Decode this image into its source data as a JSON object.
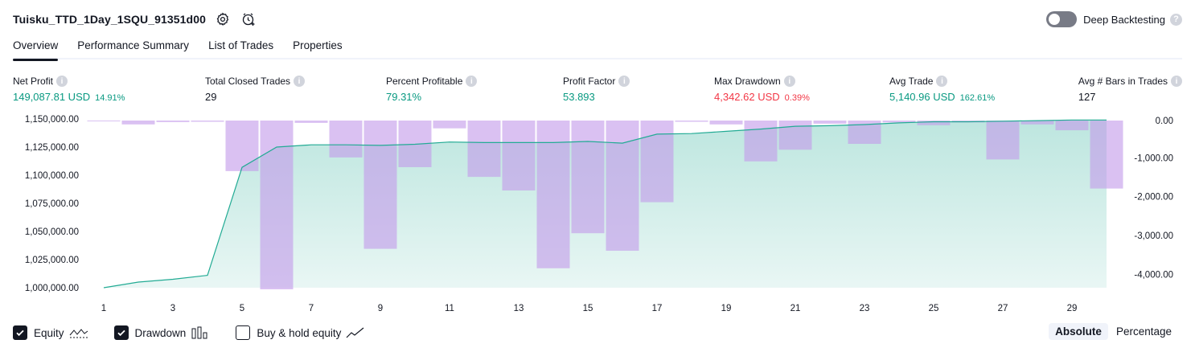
{
  "header": {
    "strategy_name": "Tuisku_TTD_1Day_1SQU_91351d00",
    "icons": [
      "settings-icon",
      "alert-clock-icon"
    ]
  },
  "deep_backtesting": {
    "label": "Deep Backtesting",
    "enabled": false
  },
  "tabs": [
    {
      "label": "Overview",
      "active": true
    },
    {
      "label": "Performance Summary",
      "active": false
    },
    {
      "label": "List of Trades",
      "active": false
    },
    {
      "label": "Properties",
      "active": false
    }
  ],
  "metrics": [
    {
      "label": "Net Profit",
      "value": "149,087.81 USD",
      "sub": "14.91%",
      "color": "#089981"
    },
    {
      "label": "Total Closed Trades",
      "value": "29",
      "sub": "",
      "color": "#131722"
    },
    {
      "label": "Percent Profitable",
      "value": "79.31%",
      "sub": "",
      "color": "#089981"
    },
    {
      "label": "Profit Factor",
      "value": "53.893",
      "sub": "",
      "color": "#089981"
    },
    {
      "label": "Max Drawdown",
      "value": "4,342.62 USD",
      "sub": "0.39%",
      "color": "#f23645"
    },
    {
      "label": "Avg Trade",
      "value": "5,140.96 USD",
      "sub": "162.61%",
      "color": "#089981"
    },
    {
      "label": "Avg # Bars in Trades",
      "value": "127",
      "sub": "",
      "color": "#131722"
    }
  ],
  "chart_data": {
    "type": "line",
    "x_ticks": [
      "1",
      "3",
      "5",
      "7",
      "9",
      "11",
      "13",
      "15",
      "17",
      "19",
      "21",
      "23",
      "25",
      "27",
      "29"
    ],
    "y_left_ticks": [
      "1,150,000.00",
      "1,125,000.00",
      "1,100,000.00",
      "1,075,000.00",
      "1,050,000.00",
      "1,025,000.00",
      "1,000,000.00"
    ],
    "y_right_ticks": [
      "0.00",
      "-1,000.00",
      "-2,000.00",
      "-3,000.00",
      "-4,000.00"
    ],
    "left_ylim": [
      1000000,
      1150000
    ],
    "right_ylim": [
      -4342.62,
      0
    ],
    "x": [
      1,
      2,
      3,
      4,
      5,
      6,
      7,
      8,
      9,
      10,
      11,
      12,
      13,
      14,
      15,
      16,
      17,
      18,
      19,
      20,
      21,
      22,
      23,
      24,
      25,
      26,
      27,
      28,
      29,
      30
    ],
    "series": [
      {
        "name": "Equity",
        "kind": "area",
        "color": "#22ab94",
        "values": [
          1000000,
          1005000,
          1007500,
          1011000,
          1107000,
          1125000,
          1127000,
          1127000,
          1126500,
          1127500,
          1129500,
          1129000,
          1129000,
          1129000,
          1130000,
          1128500,
          1136500,
          1137000,
          1139000,
          1141000,
          1143500,
          1144000,
          1145000,
          1146500,
          1147500,
          1147500,
          1148000,
          1148500,
          1149087.81,
          1149087.81
        ]
      },
      {
        "name": "Drawdown",
        "kind": "bar",
        "color": "#ce93d8",
        "values": [
          -20,
          -100,
          -40,
          -30,
          -1300,
          -4342.62,
          -60,
          -950,
          -3300,
          -1200,
          -200,
          -1450,
          -1800,
          -3800,
          -2900,
          -3350,
          -2100,
          -30,
          -100,
          -1050,
          -750,
          -80,
          -600,
          -50,
          -120,
          -50,
          -1000,
          -100,
          -250,
          -1750
        ]
      }
    ]
  },
  "legend": [
    {
      "label": "Equity",
      "checked": true,
      "icon": "equity-line-icon"
    },
    {
      "label": "Drawdown",
      "checked": true,
      "icon": "drawdown-bars-icon"
    },
    {
      "label": "Buy & hold equity",
      "checked": false,
      "icon": "buy-hold-line-icon"
    }
  ],
  "modes": [
    {
      "label": "Absolute",
      "active": true
    },
    {
      "label": "Percentage",
      "active": false
    }
  ]
}
